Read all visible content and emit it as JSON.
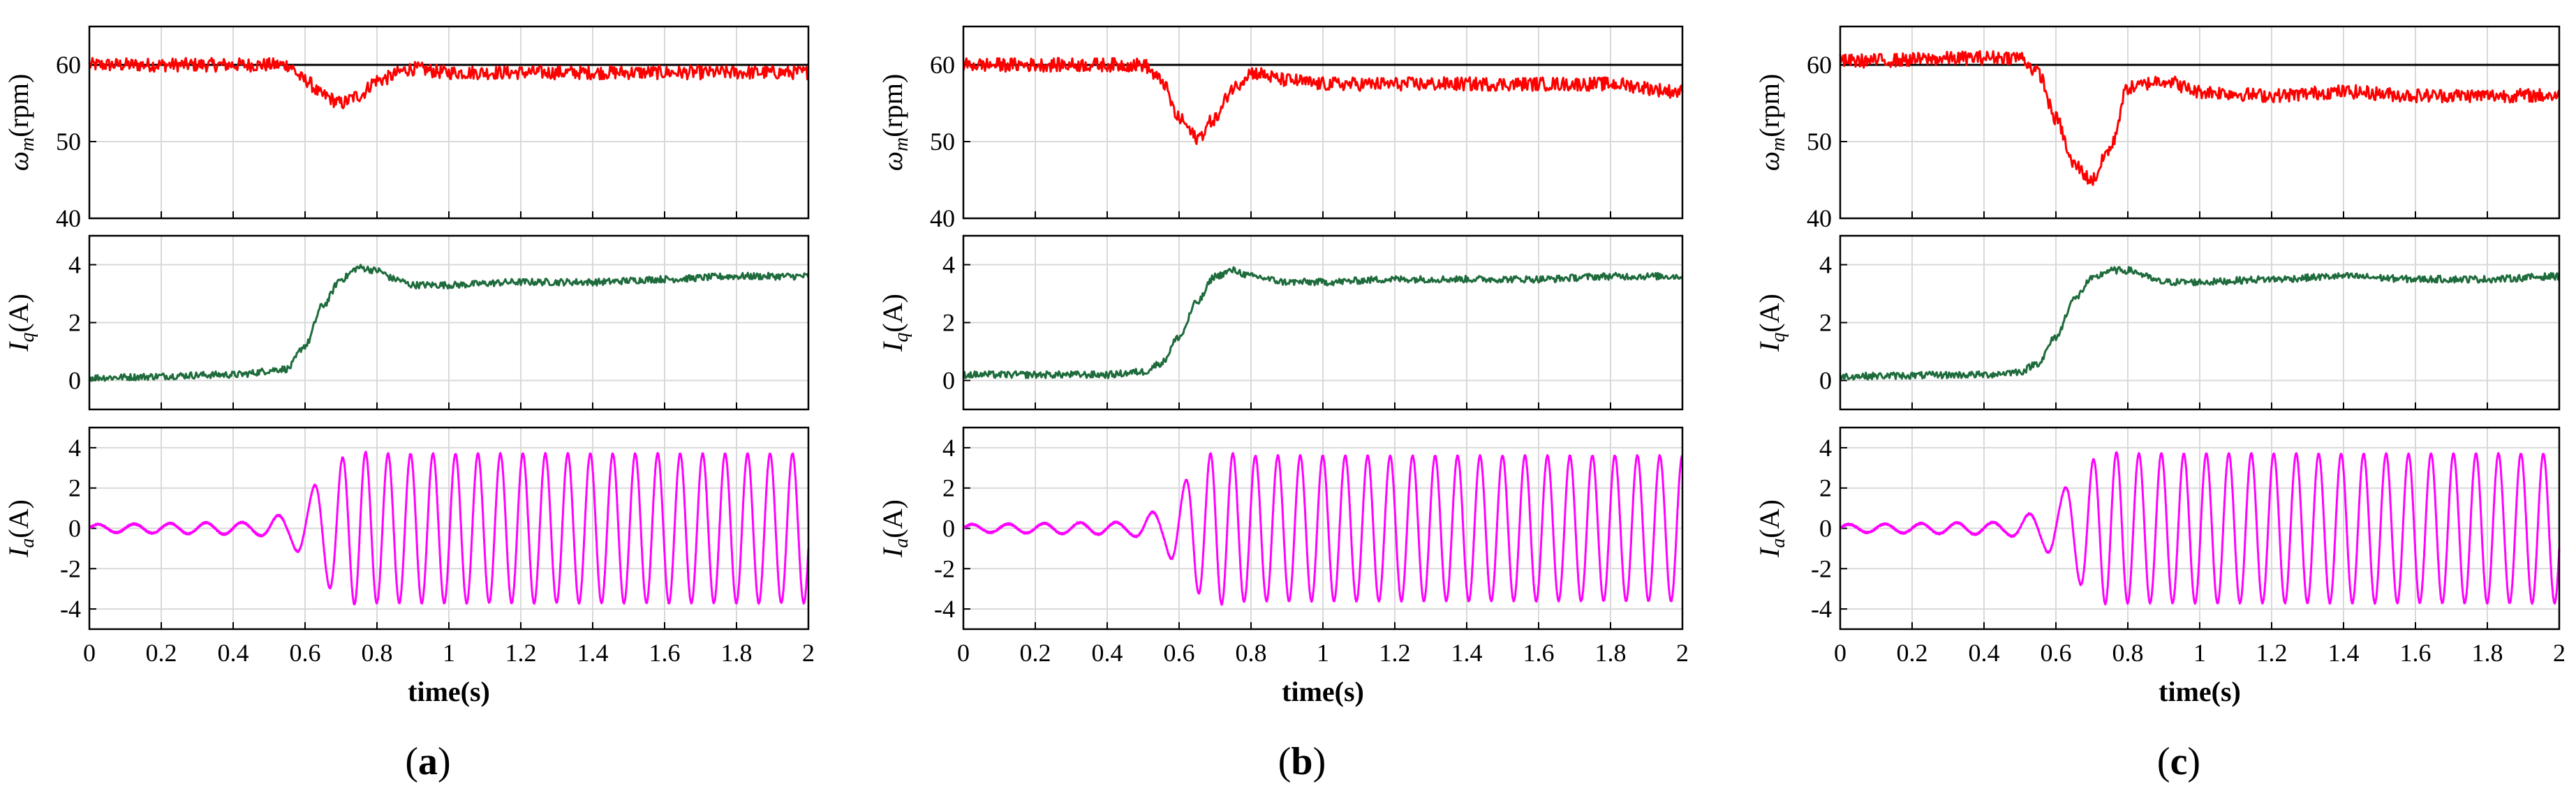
{
  "colors": {
    "speed": "#ff0000",
    "reference": "#000000",
    "iq": "#1e6b3c",
    "ia": "#ff00ff",
    "grid": "#d9d9d9"
  },
  "chart_data": [
    {
      "type": "line",
      "panel_label": "a",
      "xlabel": "time(s)",
      "xlim": [
        0,
        2
      ],
      "xticks": [
        "0",
        "0.2",
        "0.4",
        "0.6",
        "0.8",
        "1",
        "1.2",
        "1.4",
        "1.6",
        "1.8",
        "2"
      ],
      "grid": true,
      "subplots": [
        {
          "ylabel_symbol": "ω",
          "ylabel_sub": "m",
          "ylabel_unit": "(rpm)",
          "ylim": [
            40,
            65
          ],
          "yticks": [
            "40",
            "50",
            "60"
          ],
          "reference": 60,
          "series": {
            "x": [
              0,
              0.55,
              0.6,
              0.65,
              0.7,
              0.75,
              0.8,
              0.9,
              1.0,
              1.2,
              1.4,
              1.6,
              1.8,
              2.0
            ],
            "y": [
              60,
              60,
              58,
              56,
              55,
              56,
              58,
              59.5,
              59,
              59,
              59,
              59,
              59,
              59
            ]
          }
        },
        {
          "ylabel_symbol": "I",
          "ylabel_sub": "q",
          "ylabel_unit": "(A)",
          "ylim": [
            -1,
            5
          ],
          "yticks": [
            "0",
            "2",
            "4"
          ],
          "series": {
            "x": [
              0,
              0.4,
              0.55,
              0.6,
              0.65,
              0.7,
              0.75,
              0.8,
              0.85,
              0.9,
              1.0,
              1.2,
              1.4,
              1.6,
              1.8,
              2.0
            ],
            "y": [
              0.1,
              0.2,
              0.4,
              1.2,
              2.6,
              3.5,
              3.9,
              3.8,
              3.5,
              3.3,
              3.3,
              3.4,
              3.4,
              3.5,
              3.6,
              3.6
            ]
          }
        },
        {
          "ylabel_symbol": "I",
          "ylabel_sub": "a",
          "ylabel_unit": "(A)",
          "ylim": [
            -5,
            5
          ],
          "yticks": [
            "-4",
            "-2",
            "0",
            "2",
            "4"
          ],
          "envelope": {
            "x": [
              0,
              0.45,
              0.55,
              0.6,
              0.65,
              0.7,
              0.75,
              0.8,
              2.0
            ],
            "amplitude": [
              0.2,
              0.3,
              0.7,
              1.5,
              2.7,
              3.5,
              3.8,
              3.7,
              3.7
            ]
          },
          "frequency": {
            "x": [
              0,
              0.6,
              0.75,
              2.0
            ],
            "hz": [
              10,
              10,
              16,
              16
            ]
          }
        }
      ]
    },
    {
      "type": "line",
      "panel_label": "b",
      "xlabel": "time(s)",
      "xlim": [
        0,
        2
      ],
      "xticks": [
        "0",
        "0.2",
        "0.4",
        "0.6",
        "0.8",
        "1",
        "1.2",
        "1.4",
        "1.6",
        "1.8",
        "2"
      ],
      "grid": true,
      "subplots": [
        {
          "ylabel_symbol": "ω",
          "ylabel_sub": "m",
          "ylabel_unit": "(rpm)",
          "ylim": [
            40,
            65
          ],
          "yticks": [
            "40",
            "50",
            "60"
          ],
          "reference": 60,
          "series": {
            "x": [
              0,
              0.5,
              0.55,
              0.6,
              0.65,
              0.7,
              0.75,
              0.8,
              0.9,
              1.0,
              1.2,
              1.4,
              1.6,
              1.8,
              2.0
            ],
            "y": [
              60,
              60,
              58,
              53,
              50.5,
              53,
              57,
              59,
              58,
              57.5,
              57.5,
              57.5,
              57.5,
              57.5,
              56.5
            ]
          }
        },
        {
          "ylabel_symbol": "I",
          "ylabel_sub": "q",
          "ylabel_unit": "(A)",
          "ylim": [
            -1,
            5
          ],
          "yticks": [
            "0",
            "2",
            "4"
          ],
          "series": {
            "x": [
              0,
              0.4,
              0.5,
              0.55,
              0.6,
              0.65,
              0.7,
              0.75,
              0.8,
              0.9,
              1.0,
              1.2,
              1.4,
              1.6,
              1.8,
              2.0
            ],
            "y": [
              0.2,
              0.2,
              0.3,
              0.6,
              1.5,
              2.7,
              3.6,
              3.8,
              3.6,
              3.4,
              3.4,
              3.5,
              3.5,
              3.5,
              3.6,
              3.6
            ]
          }
        },
        {
          "ylabel_symbol": "I",
          "ylabel_sub": "a",
          "ylabel_unit": "(A)",
          "ylim": [
            -5,
            5
          ],
          "yticks": [
            "-4",
            "-2",
            "0",
            "2",
            "4"
          ],
          "envelope": {
            "x": [
              0,
              0.45,
              0.55,
              0.6,
              0.65,
              0.7,
              0.75,
              0.8,
              2.0
            ],
            "amplitude": [
              0.2,
              0.3,
              0.9,
              2.0,
              3.2,
              3.8,
              3.7,
              3.6,
              3.6
            ]
          },
          "frequency": {
            "x": [
              0,
              0.55,
              0.7,
              2.0
            ],
            "hz": [
              10,
              10,
              16,
              16
            ]
          }
        }
      ]
    },
    {
      "type": "line",
      "panel_label": "c",
      "xlabel": "time(s)",
      "xlim": [
        0,
        2
      ],
      "xticks": [
        "0",
        "0.2",
        "0.4",
        "0.6",
        "0.8",
        "1",
        "1.2",
        "1.4",
        "1.6",
        "1.8",
        "2"
      ],
      "grid": true,
      "subplots": [
        {
          "ylabel_symbol": "ω",
          "ylabel_sub": "m",
          "ylabel_unit": "(rpm)",
          "ylim": [
            40,
            65
          ],
          "yticks": [
            "40",
            "50",
            "60"
          ],
          "reference": 60,
          "series": {
            "x": [
              0,
              0.5,
              0.55,
              0.6,
              0.65,
              0.7,
              0.75,
              0.8,
              0.9,
              1.0,
              1.2,
              1.4,
              1.6,
              1.8,
              2.0
            ],
            "y": [
              60.5,
              61,
              59,
              53,
              47,
              45,
              49,
              57,
              58,
              56.5,
              56,
              56.5,
              56,
              56,
              56
            ]
          }
        },
        {
          "ylabel_symbol": "I",
          "ylabel_sub": "q",
          "ylabel_unit": "(A)",
          "ylim": [
            -1,
            5
          ],
          "yticks": [
            "0",
            "2",
            "4"
          ],
          "series": {
            "x": [
              0,
              0.4,
              0.5,
              0.55,
              0.6,
              0.65,
              0.7,
              0.75,
              0.8,
              0.9,
              1.0,
              1.2,
              1.4,
              1.6,
              1.8,
              2.0
            ],
            "y": [
              0.15,
              0.2,
              0.3,
              0.6,
              1.5,
              2.8,
              3.5,
              3.8,
              3.8,
              3.4,
              3.4,
              3.5,
              3.6,
              3.5,
              3.5,
              3.6
            ]
          }
        },
        {
          "ylabel_symbol": "I",
          "ylabel_sub": "a",
          "ylabel_unit": "(A)",
          "ylim": [
            -5,
            5
          ],
          "yticks": [
            "-4",
            "-2",
            "0",
            "2",
            "4"
          ],
          "envelope": {
            "x": [
              0,
              0.45,
              0.55,
              0.6,
              0.65,
              0.7,
              0.75,
              0.8,
              2.0
            ],
            "amplitude": [
              0.2,
              0.3,
              0.8,
              1.5,
              2.5,
              3.4,
              3.8,
              3.7,
              3.7
            ]
          },
          "frequency": {
            "x": [
              0,
              0.6,
              0.75,
              2.0
            ],
            "hz": [
              10,
              10,
              16,
              16
            ]
          }
        }
      ]
    }
  ]
}
